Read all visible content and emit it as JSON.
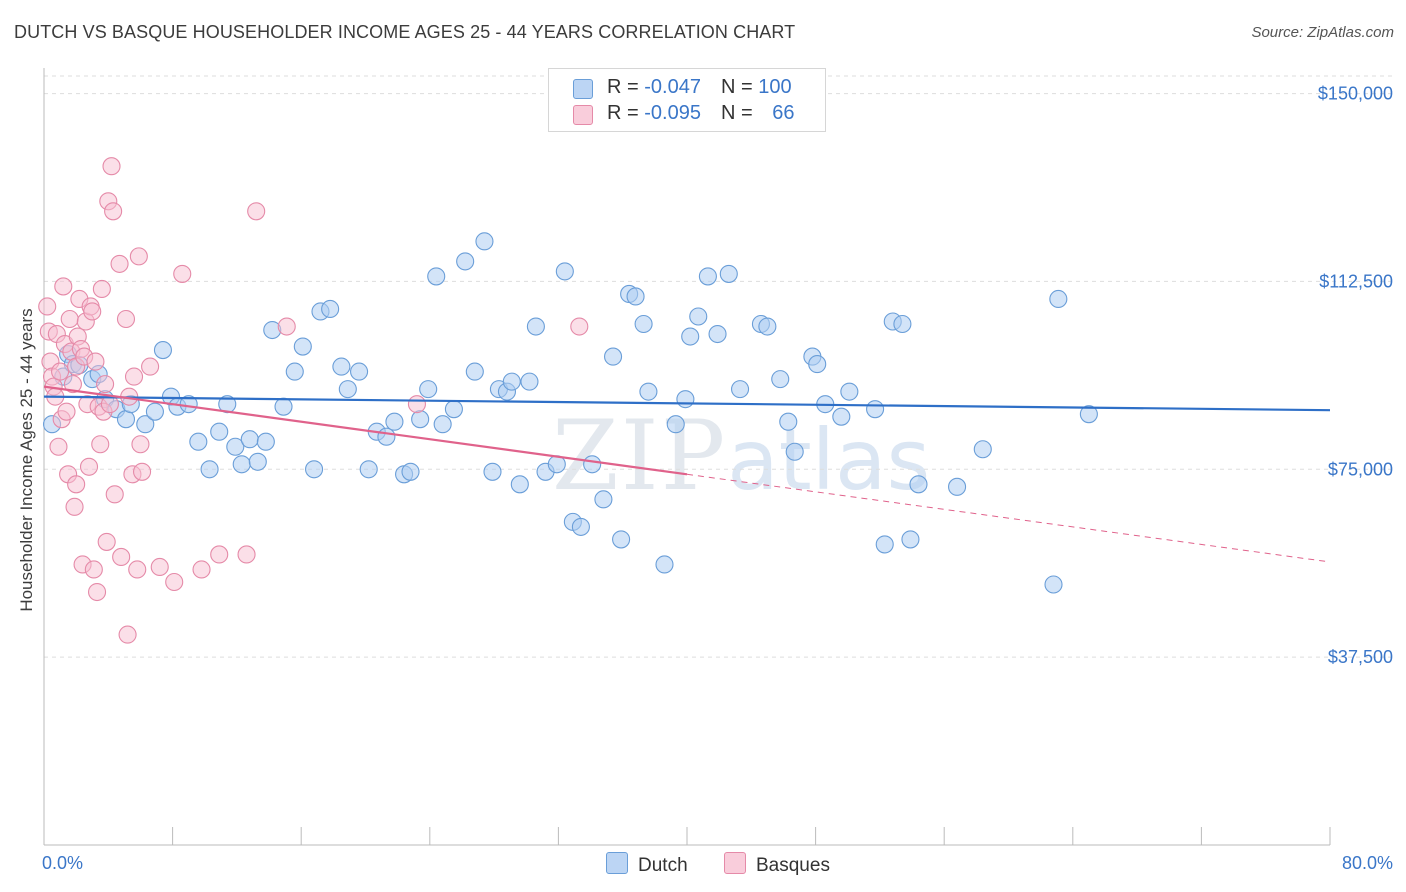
{
  "header": {
    "title": "DUTCH VS BASQUE HOUSEHOLDER INCOME AGES 25 - 44 YEARS CORRELATION CHART",
    "source": "Source: ZipAtlas.com"
  },
  "watermark": {
    "zip": "ZIP",
    "atlas": "atlas"
  },
  "legend": {
    "dutch": {
      "r_label": "R = ",
      "r_value": "-0.047",
      "n_label": "N = ",
      "n_value": "100"
    },
    "basques": {
      "r_label": "R = ",
      "r_value": "-0.095",
      "n_label": "N = ",
      "n_value": "66"
    }
  },
  "colors": {
    "dutch_fill": "#aecdf2",
    "dutch_stroke": "#6a9ed8",
    "dutch_line": "#2e6fc7",
    "basque_fill": "#f7c0d1",
    "basque_stroke": "#e58aa8",
    "basque_line": "#e0628b",
    "grid": "#dddddd",
    "axis_text": "#3a76c8"
  },
  "chart_data": {
    "type": "scatter",
    "title": "DUTCH VS BASQUE HOUSEHOLDER INCOME AGES 25 - 44 YEARS CORRELATION CHART",
    "xlabel": "",
    "ylabel": "Householder Income Ages 25 - 44 years",
    "xlim": [
      0,
      80
    ],
    "ylim": [
      0,
      157500
    ],
    "x_tick_labels": [
      "0.0%",
      "80.0%"
    ],
    "y_ticks": [
      37500,
      75000,
      112500,
      150000
    ],
    "y_tick_labels": [
      "$37,500",
      "$75,000",
      "$112,500",
      "$150,000"
    ],
    "legend_position": "top-center",
    "bottom_legend": [
      "Dutch",
      "Basques"
    ],
    "series": [
      {
        "name": "Dutch",
        "points": [
          [
            0.5,
            84000
          ],
          [
            1.2,
            93500
          ],
          [
            1.5,
            98000
          ],
          [
            1.8,
            96000
          ],
          [
            2.2,
            95800
          ],
          [
            3.0,
            93000
          ],
          [
            3.4,
            94000
          ],
          [
            3.8,
            89000
          ],
          [
            4.5,
            87000
          ],
          [
            5.1,
            85000
          ],
          [
            5.4,
            88000
          ],
          [
            6.3,
            84000
          ],
          [
            6.9,
            86500
          ],
          [
            7.4,
            98800
          ],
          [
            7.9,
            89500
          ],
          [
            8.3,
            87500
          ],
          [
            9.0,
            88000
          ],
          [
            9.6,
            80500
          ],
          [
            10.3,
            75000
          ],
          [
            10.9,
            82500
          ],
          [
            11.4,
            88000
          ],
          [
            11.9,
            79500
          ],
          [
            12.3,
            76000
          ],
          [
            12.8,
            81000
          ],
          [
            13.3,
            76500
          ],
          [
            13.8,
            80500
          ],
          [
            14.2,
            102800
          ],
          [
            14.9,
            87500
          ],
          [
            15.6,
            94500
          ],
          [
            16.1,
            99500
          ],
          [
            16.8,
            75000
          ],
          [
            17.2,
            106500
          ],
          [
            17.8,
            107000
          ],
          [
            18.5,
            95500
          ],
          [
            18.9,
            91000
          ],
          [
            19.6,
            94500
          ],
          [
            20.2,
            75000
          ],
          [
            20.7,
            82500
          ],
          [
            21.3,
            81500
          ],
          [
            21.8,
            84500
          ],
          [
            22.4,
            74000
          ],
          [
            22.8,
            74500
          ],
          [
            23.4,
            85000
          ],
          [
            23.9,
            91000
          ],
          [
            24.4,
            113500
          ],
          [
            24.8,
            84000
          ],
          [
            25.5,
            87000
          ],
          [
            26.2,
            116500
          ],
          [
            26.8,
            94500
          ],
          [
            27.4,
            120500
          ],
          [
            27.9,
            74500
          ],
          [
            28.3,
            91000
          ],
          [
            28.8,
            90500
          ],
          [
            29.1,
            92500
          ],
          [
            29.6,
            72000
          ],
          [
            30.2,
            92500
          ],
          [
            30.6,
            103500
          ],
          [
            31.2,
            74500
          ],
          [
            31.9,
            76000
          ],
          [
            32.4,
            114500
          ],
          [
            32.9,
            64500
          ],
          [
            33.4,
            63500
          ],
          [
            34.1,
            76000
          ],
          [
            34.8,
            69000
          ],
          [
            35.4,
            97500
          ],
          [
            35.9,
            61000
          ],
          [
            36.4,
            110000
          ],
          [
            36.8,
            109500
          ],
          [
            37.3,
            104000
          ],
          [
            37.6,
            90500
          ],
          [
            38.6,
            56000
          ],
          [
            39.3,
            84000
          ],
          [
            39.9,
            89000
          ],
          [
            40.2,
            101500
          ],
          [
            40.7,
            105500
          ],
          [
            41.3,
            113500
          ],
          [
            41.9,
            102000
          ],
          [
            42.6,
            114000
          ],
          [
            43.3,
            91000
          ],
          [
            44.6,
            104000
          ],
          [
            45.0,
            103500
          ],
          [
            45.8,
            93000
          ],
          [
            46.3,
            84500
          ],
          [
            46.7,
            78500
          ],
          [
            47.8,
            97500
          ],
          [
            48.1,
            96000
          ],
          [
            48.6,
            88000
          ],
          [
            49.6,
            85500
          ],
          [
            50.1,
            90500
          ],
          [
            51.7,
            87000
          ],
          [
            52.3,
            60000
          ],
          [
            52.8,
            104500
          ],
          [
            53.4,
            104000
          ],
          [
            53.9,
            61000
          ],
          [
            54.4,
            72000
          ],
          [
            56.8,
            71500
          ],
          [
            58.4,
            79000
          ],
          [
            62.8,
            52000
          ],
          [
            63.1,
            109000
          ],
          [
            65.0,
            86000
          ]
        ]
      },
      {
        "name": "Basques",
        "points": [
          [
            0.2,
            107500
          ],
          [
            0.3,
            102500
          ],
          [
            0.4,
            96500
          ],
          [
            0.5,
            93500
          ],
          [
            0.6,
            91500
          ],
          [
            0.7,
            89500
          ],
          [
            0.8,
            102000
          ],
          [
            0.9,
            79500
          ],
          [
            1.0,
            94500
          ],
          [
            1.1,
            85000
          ],
          [
            1.2,
            111500
          ],
          [
            1.3,
            100000
          ],
          [
            1.4,
            86500
          ],
          [
            1.5,
            74000
          ],
          [
            1.6,
            105000
          ],
          [
            1.7,
            98500
          ],
          [
            1.8,
            92000
          ],
          [
            1.9,
            67500
          ],
          [
            2.0,
            95500
          ],
          [
            2.1,
            101500
          ],
          [
            2.2,
            109000
          ],
          [
            2.3,
            99000
          ],
          [
            2.4,
            56000
          ],
          [
            2.5,
            97500
          ],
          [
            2.6,
            104500
          ],
          [
            2.7,
            88000
          ],
          [
            2.8,
            75500
          ],
          [
            2.9,
            107500
          ],
          [
            3.0,
            106500
          ],
          [
            3.1,
            55000
          ],
          [
            3.2,
            96500
          ],
          [
            3.3,
            50500
          ],
          [
            3.4,
            87500
          ],
          [
            3.5,
            80000
          ],
          [
            3.6,
            111000
          ],
          [
            3.7,
            86500
          ],
          [
            3.8,
            92000
          ],
          [
            3.9,
            60500
          ],
          [
            4.0,
            128500
          ],
          [
            4.1,
            88000
          ],
          [
            4.2,
            135500
          ],
          [
            4.3,
            126500
          ],
          [
            4.4,
            70000
          ],
          [
            4.7,
            116000
          ],
          [
            4.8,
            57500
          ],
          [
            5.1,
            105000
          ],
          [
            5.2,
            42000
          ],
          [
            5.3,
            89500
          ],
          [
            5.5,
            74000
          ],
          [
            5.6,
            93500
          ],
          [
            5.8,
            55000
          ],
          [
            5.9,
            117500
          ],
          [
            6.0,
            80000
          ],
          [
            6.1,
            74500
          ],
          [
            6.6,
            95500
          ],
          [
            7.2,
            55500
          ],
          [
            8.1,
            52500
          ],
          [
            8.6,
            114000
          ],
          [
            9.8,
            55000
          ],
          [
            10.9,
            58000
          ],
          [
            12.6,
            58000
          ],
          [
            13.2,
            126500
          ],
          [
            15.1,
            103500
          ],
          [
            23.2,
            88000
          ],
          [
            33.3,
            103500
          ],
          [
            2.0,
            72000
          ]
        ]
      }
    ],
    "trend_lines": [
      {
        "series": "Dutch",
        "x": [
          0,
          80
        ],
        "y": [
          89500,
          86800
        ],
        "style": "solid"
      },
      {
        "series": "Basques",
        "x": [
          0,
          40
        ],
        "y": [
          91500,
          74000
        ],
        "style": "solid"
      },
      {
        "series": "Basques",
        "x": [
          40,
          80
        ],
        "y": [
          74000,
          56500
        ],
        "style": "dashed"
      }
    ]
  }
}
